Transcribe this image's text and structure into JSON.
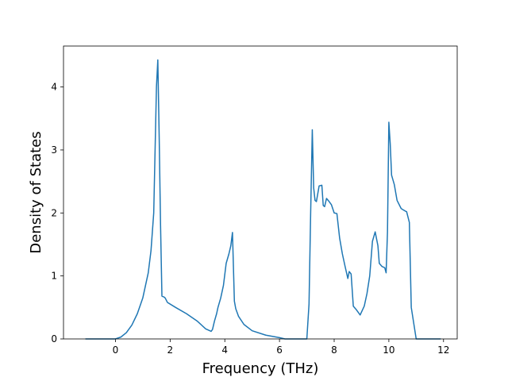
{
  "chart_data": {
    "type": "line",
    "xlabel": "Frequency (THz)",
    "ylabel": "Density of States",
    "xlim": [
      -1.9,
      12.5
    ],
    "ylim": [
      0,
      4.65
    ],
    "xticks": [
      0,
      2,
      4,
      6,
      8,
      10,
      12
    ],
    "yticks": [
      0,
      1,
      2,
      3,
      4
    ],
    "xtick_labels": [
      "0",
      "2",
      "4",
      "6",
      "8",
      "10",
      "12"
    ],
    "ytick_labels": [
      "0",
      "1",
      "2",
      "3",
      "4"
    ],
    "grid": false,
    "legend": "none",
    "line_color": "#1f77b4",
    "series": [
      {
        "x": [
          -1.1,
          0.0,
          0.2,
          0.4,
          0.6,
          0.8,
          1.0,
          1.1,
          1.2,
          1.3,
          1.4,
          1.5,
          1.55,
          1.6,
          1.65,
          1.7,
          1.75,
          1.8,
          1.83,
          1.9,
          2.2,
          2.6,
          3.0,
          3.3,
          3.5,
          3.55,
          3.62,
          3.7,
          3.75,
          3.85,
          3.95,
          4.05,
          4.15,
          4.22,
          4.28,
          4.35,
          4.4,
          4.5,
          4.7,
          5.0,
          5.5,
          6.0,
          6.2,
          7.0,
          7.08,
          7.14,
          7.2,
          7.25,
          7.3,
          7.35,
          7.45,
          7.55,
          7.6,
          7.65,
          7.72,
          7.8,
          7.9,
          8.0,
          8.1,
          8.2,
          8.3,
          8.4,
          8.5,
          8.55,
          8.62,
          8.7,
          8.8,
          8.95,
          9.1,
          9.2,
          9.3,
          9.4,
          9.5,
          9.6,
          9.65,
          9.75,
          9.85,
          9.9,
          9.95,
          10.0,
          10.05,
          10.1,
          10.2,
          10.3,
          10.45,
          10.6,
          10.65,
          10.75,
          10.82,
          11.0,
          11.5,
          11.9
        ],
        "y": [
          0,
          0,
          0.03,
          0.1,
          0.22,
          0.4,
          0.65,
          0.85,
          1.05,
          1.4,
          2.0,
          4.0,
          4.43,
          3.2,
          1.8,
          0.68,
          0.67,
          0.66,
          0.64,
          0.58,
          0.5,
          0.4,
          0.28,
          0.16,
          0.12,
          0.15,
          0.28,
          0.4,
          0.5,
          0.65,
          0.85,
          1.2,
          1.35,
          1.48,
          1.69,
          0.6,
          0.48,
          0.36,
          0.23,
          0.13,
          0.06,
          0.02,
          0,
          0,
          0.55,
          2.0,
          3.32,
          2.4,
          2.2,
          2.18,
          2.43,
          2.44,
          2.12,
          2.1,
          2.23,
          2.19,
          2.13,
          2.0,
          1.99,
          1.6,
          1.35,
          1.15,
          0.96,
          1.07,
          1.03,
          0.52,
          0.47,
          0.38,
          0.52,
          0.72,
          1.0,
          1.55,
          1.7,
          1.48,
          1.2,
          1.15,
          1.13,
          1.05,
          1.7,
          3.44,
          3.1,
          2.6,
          2.45,
          2.2,
          2.07,
          2.03,
          2.02,
          1.85,
          0.5,
          0,
          0,
          0
        ]
      }
    ]
  }
}
